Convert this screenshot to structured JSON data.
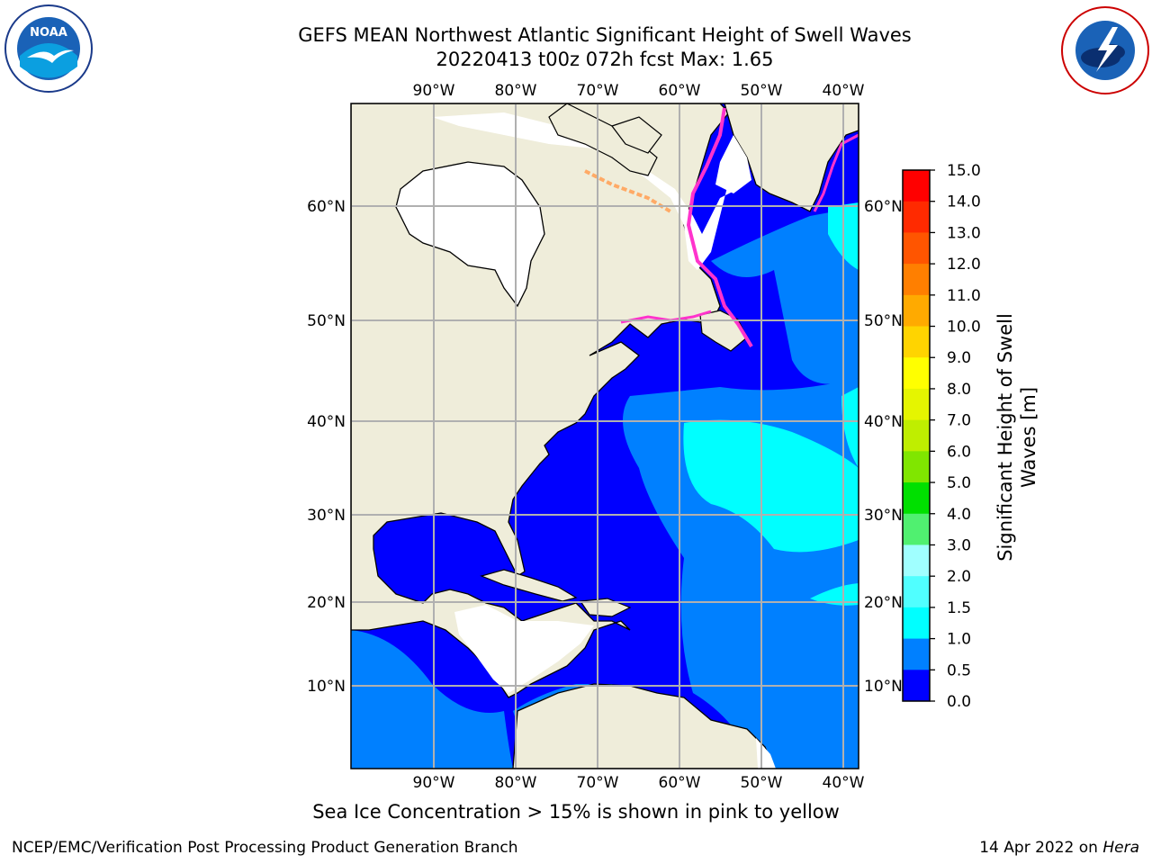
{
  "header": {
    "title_line1": "GEFS MEAN Northwest Atlantic Significant Height of Swell Waves",
    "title_line2": "20220413 t00z 072h fcst   Max: 1.65"
  },
  "logos": {
    "left": {
      "icon": "noaa-logo",
      "text": "NOAA"
    },
    "right": {
      "icon": "national-weather-service-logo",
      "text": "NATIONAL WEATHER SERVICE"
    }
  },
  "map": {
    "lon_labels": [
      "90°W",
      "80°W",
      "70°W",
      "60°W",
      "50°W",
      "40°W"
    ],
    "lat_labels": [
      "60°N",
      "50°N",
      "40°N",
      "30°N",
      "20°N",
      "10°N"
    ],
    "colors": {
      "land": "#efedda",
      "ice_free": "#ffffff",
      "ice_edge": "#ff33cc",
      "frame": "#000000",
      "grid": "#b0b0b0"
    }
  },
  "colorbar": {
    "label_line1": "Significant Height of Swell",
    "label_line2": "Waves [m]",
    "ticks": [
      "15.0",
      "14.0",
      "13.0",
      "12.0",
      "11.0",
      "10.0",
      "9.0",
      "8.0",
      "7.0",
      "6.0",
      "5.0",
      "4.0",
      "3.0",
      "2.0",
      "1.5",
      "1.0",
      "0.5",
      "0.0"
    ],
    "colors": [
      "#ff0000",
      "#ff2a00",
      "#ff5500",
      "#ff7f00",
      "#ffaa00",
      "#ffd400",
      "#ffff00",
      "#e5f500",
      "#bfee00",
      "#80e600",
      "#00e000",
      "#50f070",
      "#a0ffff",
      "#50ffff",
      "#00ffff",
      "#0080ff",
      "#0000ff"
    ]
  },
  "footer": {
    "caption": "Sea Ice Concentration > 15% is shown in pink to yellow",
    "credit_left": "NCEP/EMC/Verification Post Processing Product Generation Branch",
    "credit_right_date": "14 Apr 2022 on ",
    "credit_right_host": "Hera"
  }
}
